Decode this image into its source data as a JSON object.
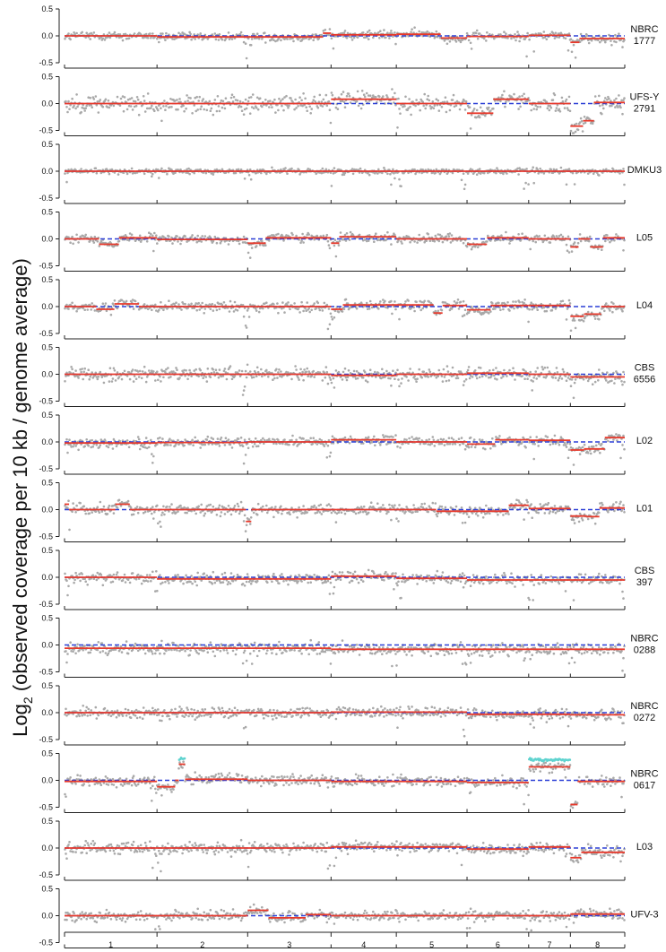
{
  "chart_data": {
    "type": "scatter",
    "ylabel": "Log2 (observed coverage per 10 kb / genome average)",
    "ylabel_base": "Log",
    "ylabel_subscript": "2",
    "ylabel_rest": " (observed coverage per 10 kb / genome average)",
    "ytick_labels": [
      "0.5",
      "0.0",
      "-0.5"
    ],
    "ytick_values": [
      0.5,
      0.0,
      -0.5
    ],
    "ylim": [
      -0.5,
      0.5
    ],
    "chromosomes": [
      "1",
      "2",
      "3",
      "4",
      "5",
      "6",
      "7",
      "8"
    ],
    "chromosome_boundaries": [
      0,
      10.2,
      20.2,
      29.4,
      36.6,
      44.4,
      51.2,
      55.8,
      61.8
    ],
    "colors": {
      "points": "#a9a9a9",
      "segments": "#e8392b",
      "ploidy_dashed": "#2b3fd6",
      "highlight_points": "#5fd3cf",
      "axis": "#222222"
    },
    "panels": [
      {
        "label": [
          "NBRC",
          "1777"
        ],
        "noise": 0.08,
        "dashed": [
          [
            0,
            61.8,
            0
          ]
        ],
        "segments": [
          [
            0,
            10.2,
            0
          ],
          [
            10.2,
            28.5,
            -0.02
          ],
          [
            28.5,
            29.4,
            0.05
          ],
          [
            29.4,
            36.6,
            0.02
          ],
          [
            36.6,
            41.5,
            0.03
          ],
          [
            41.5,
            44.4,
            -0.04
          ],
          [
            44.4,
            51.2,
            -0.01
          ],
          [
            51.2,
            55.8,
            0.01
          ],
          [
            55.8,
            56.8,
            -0.12
          ],
          [
            56.8,
            61.8,
            -0.05
          ]
        ]
      },
      {
        "label": [
          "UFS-Y",
          "2791"
        ],
        "noise": 0.16,
        "dashed": [
          [
            0,
            61.8,
            0
          ]
        ],
        "segments": [
          [
            0,
            29.4,
            0
          ],
          [
            29.4,
            36.6,
            0.08
          ],
          [
            36.6,
            44.4,
            0.0
          ],
          [
            44.4,
            47.3,
            -0.18
          ],
          [
            47.3,
            51.2,
            0.08
          ],
          [
            51.2,
            55.8,
            0.0
          ],
          [
            55.8,
            57.2,
            -0.42
          ],
          [
            57.2,
            58.4,
            -0.32
          ],
          [
            58.4,
            61.8,
            0.02
          ]
        ]
      },
      {
        "label": [
          "DMKU3"
        ],
        "noise": 0.05,
        "dashed": [
          [
            0,
            61.8,
            0
          ]
        ],
        "segments": [
          [
            0,
            61.8,
            0
          ]
        ]
      },
      {
        "label": [
          "L05"
        ],
        "noise": 0.08,
        "dashed": [
          [
            0,
            61.8,
            0
          ]
        ],
        "segments": [
          [
            0,
            3.8,
            0
          ],
          [
            3.8,
            6.0,
            -0.1
          ],
          [
            6.0,
            10.2,
            0.02
          ],
          [
            10.2,
            20.2,
            -0.01
          ],
          [
            20.2,
            22.2,
            -0.08
          ],
          [
            22.2,
            29.4,
            0.02
          ],
          [
            29.4,
            30.3,
            -0.08
          ],
          [
            30.3,
            36.6,
            0.04
          ],
          [
            36.6,
            44.4,
            0
          ],
          [
            44.4,
            46.6,
            -0.1
          ],
          [
            46.6,
            51.2,
            0.02
          ],
          [
            51.2,
            55.8,
            0
          ],
          [
            55.8,
            56.7,
            -0.15
          ],
          [
            56.7,
            58.0,
            0
          ],
          [
            58.0,
            59.4,
            -0.15
          ],
          [
            59.4,
            61.8,
            0.02
          ]
        ]
      },
      {
        "label": [
          "L04"
        ],
        "noise": 0.09,
        "dashed": [
          [
            0,
            61.8,
            0
          ]
        ],
        "segments": [
          [
            0,
            3.5,
            0
          ],
          [
            3.5,
            5.5,
            -0.05
          ],
          [
            5.5,
            8.2,
            0.05
          ],
          [
            8.2,
            29.4,
            0
          ],
          [
            29.4,
            30.7,
            -0.05
          ],
          [
            30.7,
            40.7,
            0.03
          ],
          [
            40.7,
            41.7,
            -0.12
          ],
          [
            41.7,
            44.4,
            0.02
          ],
          [
            44.4,
            47.0,
            -0.06
          ],
          [
            47.0,
            51.2,
            0.02
          ],
          [
            51.2,
            55.8,
            0.02
          ],
          [
            55.8,
            57.3,
            -0.18
          ],
          [
            57.3,
            59.2,
            -0.14
          ],
          [
            59.2,
            61.8,
            0.0
          ]
        ]
      },
      {
        "label": [
          "CBS",
          "6556"
        ],
        "noise": 0.12,
        "dashed": [
          [
            0,
            61.8,
            0
          ]
        ],
        "segments": [
          [
            0,
            29.4,
            0
          ],
          [
            29.4,
            36.6,
            -0.02
          ],
          [
            36.6,
            44.4,
            0
          ],
          [
            44.4,
            51.2,
            0.02
          ],
          [
            51.2,
            55.8,
            0
          ],
          [
            55.8,
            58.4,
            -0.05
          ],
          [
            58.4,
            61.8,
            -0.05
          ]
        ]
      },
      {
        "label": [
          "L02"
        ],
        "noise": 0.09,
        "dashed": [
          [
            0,
            61.8,
            0
          ]
        ],
        "segments": [
          [
            0,
            10.2,
            -0.02
          ],
          [
            10.2,
            20.2,
            -0.01
          ],
          [
            20.2,
            29.4,
            0.0
          ],
          [
            29.4,
            36.6,
            0.04
          ],
          [
            36.6,
            44.4,
            0.0
          ],
          [
            44.4,
            47.5,
            -0.04
          ],
          [
            47.5,
            51.2,
            0.04
          ],
          [
            51.2,
            55.8,
            0.03
          ],
          [
            55.8,
            57.3,
            -0.15
          ],
          [
            57.3,
            59.6,
            -0.13
          ],
          [
            59.6,
            61.8,
            0.08
          ]
        ]
      },
      {
        "label": [
          "L01"
        ],
        "noise": 0.1,
        "dashed": [
          [
            0,
            61.8,
            0
          ]
        ],
        "segments": [
          [
            0,
            0.5,
            0.1
          ],
          [
            0.5,
            5.6,
            0
          ],
          [
            5.6,
            7.2,
            0.1
          ],
          [
            7.2,
            10.2,
            0
          ],
          [
            10.2,
            20.0,
            0
          ],
          [
            20.0,
            20.6,
            -0.22
          ],
          [
            20.6,
            29.4,
            0
          ],
          [
            29.4,
            36.6,
            0
          ],
          [
            36.6,
            41.0,
            0
          ],
          [
            41.0,
            44.4,
            -0.03
          ],
          [
            44.4,
            49.0,
            -0.03
          ],
          [
            49.0,
            51.2,
            0.08
          ],
          [
            51.2,
            55.8,
            0.02
          ],
          [
            55.8,
            57.6,
            -0.12
          ],
          [
            57.6,
            59.0,
            -0.13
          ],
          [
            59.0,
            61.8,
            0.03
          ]
        ]
      },
      {
        "label": [
          "CBS",
          "397"
        ],
        "noise": 0.1,
        "dashed": [
          [
            0,
            61.8,
            0
          ]
        ],
        "segments": [
          [
            0,
            10.2,
            0
          ],
          [
            10.2,
            29.4,
            -0.03
          ],
          [
            29.4,
            36.6,
            0.02
          ],
          [
            36.6,
            44.4,
            -0.02
          ],
          [
            44.4,
            51.2,
            -0.05
          ],
          [
            51.2,
            55.8,
            -0.05
          ],
          [
            55.8,
            61.8,
            -0.05
          ]
        ]
      },
      {
        "label": [
          "NBRC",
          "0288"
        ],
        "noise": 0.11,
        "dashed": [
          [
            0,
            61.8,
            0.0
          ]
        ],
        "segments": [
          [
            0,
            29.4,
            -0.06
          ],
          [
            29.4,
            61.8,
            -0.08
          ]
        ]
      },
      {
        "label": [
          "NBRC",
          "0272"
        ],
        "noise": 0.1,
        "dashed": [
          [
            0,
            61.8,
            0
          ]
        ],
        "segments": [
          [
            0,
            29.4,
            0
          ],
          [
            29.4,
            44.4,
            0.01
          ],
          [
            44.4,
            55.8,
            -0.03
          ],
          [
            55.8,
            61.8,
            -0.04
          ]
        ]
      },
      {
        "label": [
          "NBRC",
          "0617"
        ],
        "noise": 0.1,
        "dashed": [
          [
            0,
            61.8,
            0
          ]
        ],
        "segments": [
          [
            0,
            10.2,
            -0.02
          ],
          [
            10.2,
            12.2,
            -0.12
          ],
          [
            12.2,
            12.6,
            0
          ],
          [
            12.6,
            13.3,
            0.3
          ],
          [
            13.3,
            20.2,
            0.02
          ],
          [
            20.2,
            29.4,
            0
          ],
          [
            29.4,
            36.6,
            -0.02
          ],
          [
            36.6,
            44.4,
            -0.02
          ],
          [
            44.4,
            51.2,
            -0.04
          ],
          [
            51.2,
            55.8,
            0.25
          ],
          [
            55.8,
            56.6,
            -0.45
          ],
          [
            56.6,
            61.8,
            -0.02
          ]
        ],
        "highlight_points": [
          [
            12.6,
            13.3,
            0.4
          ],
          [
            51.2,
            55.8,
            0.38
          ]
        ]
      },
      {
        "label": [
          "L03"
        ],
        "noise": 0.1,
        "dashed": [
          [
            0,
            61.8,
            0
          ]
        ],
        "segments": [
          [
            0,
            29.4,
            0
          ],
          [
            29.4,
            44.4,
            0.02
          ],
          [
            44.4,
            51.2,
            -0.02
          ],
          [
            51.2,
            55.8,
            0.02
          ],
          [
            55.8,
            57.0,
            -0.18
          ],
          [
            57.0,
            61.8,
            -0.08
          ]
        ]
      },
      {
        "label": [
          "UFV-3"
        ],
        "noise": 0.09,
        "dashed": [
          [
            0,
            61.8,
            0
          ]
        ],
        "segments": [
          [
            0,
            20.2,
            0
          ],
          [
            20.2,
            22.5,
            0.1
          ],
          [
            22.5,
            26.6,
            -0.04
          ],
          [
            26.6,
            29.4,
            0.02
          ],
          [
            29.4,
            36.6,
            0
          ],
          [
            36.6,
            44.4,
            0
          ],
          [
            44.4,
            55.8,
            0
          ],
          [
            55.8,
            61.8,
            0.03
          ]
        ]
      }
    ]
  }
}
